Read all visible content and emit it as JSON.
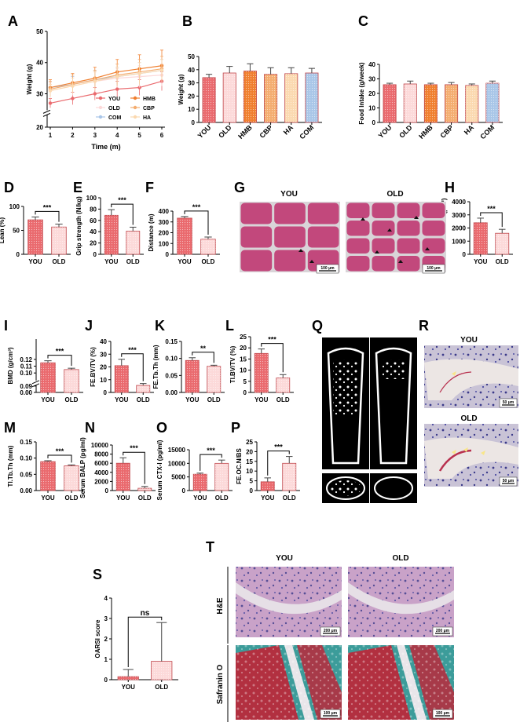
{
  "colors": {
    "YOU": "#ea6a6e",
    "OLD": "#fcd9d9",
    "HMB": "#f07f2f",
    "CBP": "#f4ad70",
    "HA": "#fbd9b0",
    "COM": "#a9c6e8",
    "tissue_pink": "#c2487c",
    "tissue_gap": "#d9d4d8",
    "safranin_red": "#b23040",
    "fast_green": "#3c9c9a"
  },
  "chart_data": [
    {
      "id": "A",
      "panel": "A",
      "type": "line",
      "x": [
        1,
        2,
        3,
        4,
        5,
        6
      ],
      "xlabel": "Time (m)",
      "ylabel": "Weight (g)",
      "yticks": [
        20,
        30,
        40,
        50
      ],
      "ylim": [
        20,
        50
      ],
      "axis_break": [
        20,
        25
      ],
      "legend": "bottom-right",
      "series": [
        {
          "name": "YOU",
          "values": [
            27,
            28.5,
            30,
            31.5,
            32,
            34
          ],
          "err": [
            1.5,
            2,
            2,
            2.5,
            2.5,
            3
          ]
        },
        {
          "name": "OLD",
          "values": [
            31,
            32.5,
            34,
            35,
            35.5,
            36
          ],
          "err": [
            2.5,
            3,
            3,
            3,
            3.5,
            3.5
          ]
        },
        {
          "name": "COM",
          "values": [
            32,
            33,
            34.5,
            35.5,
            36.5,
            37.5
          ],
          "err": [
            2,
            2.5,
            3,
            3,
            3.5,
            3.5
          ]
        },
        {
          "name": "HMB",
          "values": [
            32,
            33.5,
            35,
            37,
            38,
            39
          ],
          "err": [
            2.5,
            3,
            3.5,
            4,
            4.5,
            5
          ]
        },
        {
          "name": "CBP",
          "values": [
            31.5,
            33,
            34.5,
            36,
            37,
            38
          ],
          "err": [
            2.5,
            3,
            3,
            3.5,
            4,
            4
          ]
        },
        {
          "name": "HA",
          "values": [
            31,
            32.5,
            34,
            35.5,
            36.5,
            37.5
          ],
          "err": [
            2,
            2.5,
            3,
            3,
            3.5,
            3.5
          ]
        }
      ]
    },
    {
      "id": "B",
      "panel": "B",
      "type": "bar",
      "categories": [
        "YOU",
        "OLD",
        "HMB",
        "CBP",
        "HA",
        "COM"
      ],
      "values": [
        34,
        37.5,
        39,
        36.5,
        37,
        37.5
      ],
      "err": [
        2.5,
        5,
        5.5,
        5,
        4.5,
        3.5
      ],
      "colors": [
        "YOU",
        "OLD",
        "HMB",
        "CBP",
        "HA",
        "COM"
      ],
      "ylabel": "Weight (g)",
      "ylim": [
        0,
        50
      ],
      "yticks": [
        0,
        10,
        20,
        30,
        40,
        50
      ]
    },
    {
      "id": "C",
      "panel": "C",
      "type": "bar",
      "categories": [
        "YOU",
        "OLD",
        "HMB",
        "CBP",
        "HA",
        "COM"
      ],
      "values": [
        26,
        26.5,
        26,
        26,
        25.5,
        27
      ],
      "err": [
        1,
        2,
        1,
        1.5,
        1,
        1.5
      ],
      "colors": [
        "YOU",
        "OLD",
        "HMB",
        "CBP",
        "HA",
        "COM"
      ],
      "ylabel": "Food Intake (g/week)",
      "ylim": [
        0,
        40
      ],
      "yticks": [
        0,
        10,
        20,
        30,
        40
      ]
    },
    {
      "id": "D",
      "panel": "D",
      "type": "bar",
      "categories": [
        "YOU",
        "OLD"
      ],
      "values": [
        72,
        57
      ],
      "err": [
        6,
        6
      ],
      "ylabel": "Lean (%)",
      "ylim": [
        0,
        100
      ],
      "yticks": [
        0,
        50,
        100
      ],
      "sig": "***"
    },
    {
      "id": "E",
      "panel": "E",
      "type": "bar",
      "categories": [
        "YOU",
        "OLD"
      ],
      "values": [
        69,
        41
      ],
      "err": [
        10,
        7
      ],
      "ylabel": "Grip strength (N/kg)",
      "ylim": [
        0,
        100
      ],
      "yticks": [
        0,
        20,
        40,
        60,
        80,
        100
      ],
      "sig": "***"
    },
    {
      "id": "F",
      "panel": "F",
      "type": "bar",
      "categories": [
        "YOU",
        "OLD"
      ],
      "values": [
        335,
        140
      ],
      "err": [
        15,
        20
      ],
      "ylabel": "Distance (m)",
      "ylim": [
        0,
        400
      ],
      "yticks": [
        0,
        100,
        200,
        300,
        400
      ],
      "sig": "***"
    },
    {
      "id": "H",
      "panel": "H",
      "type": "bar",
      "categories": [
        "YOU",
        "OLD"
      ],
      "values": [
        2400,
        1600
      ],
      "err": [
        350,
        300
      ],
      "ylabel": "Cross Section (μm²)",
      "ylim": [
        0,
        4000
      ],
      "yticks": [
        0,
        1000,
        2000,
        3000,
        4000
      ],
      "sig": "***"
    },
    {
      "id": "I",
      "panel": "I",
      "type": "bar",
      "categories": [
        "YOU",
        "OLD"
      ],
      "values": [
        0.115,
        0.105
      ],
      "err": [
        0.003,
        0.002
      ],
      "ylabel": "BMD (g/cm³)",
      "ylim": [
        0,
        0.15
      ],
      "yticks": [
        0.0,
        0.09,
        0.1,
        0.11,
        0.12
      ],
      "axis_break": [
        0.0,
        0.09
      ],
      "sig": "***"
    },
    {
      "id": "J",
      "panel": "J",
      "type": "bar",
      "categories": [
        "YOU",
        "OLD"
      ],
      "values": [
        21,
        5.5
      ],
      "err": [
        5,
        1.5
      ],
      "ylabel": "FE.BV/TV (%)",
      "ylim": [
        0,
        40
      ],
      "yticks": [
        0,
        10,
        20,
        30,
        40
      ],
      "sig": "***"
    },
    {
      "id": "K",
      "panel": "K",
      "type": "bar",
      "categories": [
        "YOU",
        "OLD"
      ],
      "values": [
        0.094,
        0.077
      ],
      "err": [
        0.008,
        0.003
      ],
      "ylabel": "FE.Tb.Th (mm)",
      "ylim": [
        0,
        0.15
      ],
      "yticks": [
        0.0,
        0.05,
        0.1,
        0.15
      ],
      "sig": "**"
    },
    {
      "id": "L",
      "panel": "L",
      "type": "bar",
      "categories": [
        "YOU",
        "OLD"
      ],
      "values": [
        17.5,
        6.5
      ],
      "err": [
        2,
        1.5
      ],
      "ylabel": "Tl.BV/TV (%)",
      "ylim": [
        0,
        25
      ],
      "yticks": [
        0,
        5,
        10,
        15,
        20,
        25
      ],
      "sig": "***"
    },
    {
      "id": "M",
      "panel": "M",
      "type": "bar",
      "categories": [
        "YOU",
        "OLD"
      ],
      "values": [
        0.089,
        0.076
      ],
      "err": [
        0.003,
        0.003
      ],
      "ylabel": "Tl.Tb.Th (mm)",
      "ylim": [
        0,
        0.15
      ],
      "yticks": [
        0.0,
        0.05,
        0.1,
        0.15
      ],
      "sig": "***"
    },
    {
      "id": "N",
      "panel": "N",
      "type": "bar",
      "categories": [
        "YOU",
        "OLD"
      ],
      "values": [
        6000,
        500
      ],
      "err": [
        1200,
        400
      ],
      "ylabel": "Serum BALP (pg/ml)",
      "ylim": [
        0,
        10000
      ],
      "yticks": [
        0,
        2000,
        4000,
        6000,
        8000,
        10000
      ],
      "sig": "***"
    },
    {
      "id": "O",
      "panel": "O",
      "type": "bar",
      "categories": [
        "YOU",
        "OLD"
      ],
      "values": [
        6000,
        10000
      ],
      "err": [
        400,
        1200
      ],
      "ylabel": "Serum CTX-I (pg/ml)",
      "ylim": [
        0,
        15000
      ],
      "yticks": [
        0,
        5000,
        10000,
        15000
      ],
      "sig": "***"
    },
    {
      "id": "P",
      "panel": "P",
      "type": "bar",
      "categories": [
        "YOU",
        "OLD"
      ],
      "values": [
        4.5,
        14
      ],
      "err": [
        2,
        3.5
      ],
      "ylabel": "FE.OC.N/BS",
      "ylim": [
        0,
        25
      ],
      "yticks": [
        0,
        5,
        10,
        15,
        20,
        25
      ],
      "sig": "***"
    },
    {
      "id": "S",
      "panel": "S",
      "type": "bar",
      "categories": [
        "YOU",
        "OLD"
      ],
      "values": [
        0.15,
        0.9
      ],
      "err": [
        0.35,
        1.9
      ],
      "ylabel": "OARSI score",
      "ylim": [
        0,
        4
      ],
      "yticks": [
        0,
        1,
        2,
        3,
        4
      ],
      "sig": "ns"
    }
  ],
  "image_panels": {
    "G": {
      "titles": [
        "YOU",
        "OLD"
      ],
      "scalebars": [
        "100 μm",
        "100 μm"
      ]
    },
    "Q": {
      "titles": [
        "YOU",
        "OLD"
      ]
    },
    "R": {
      "titles": [
        "YOU",
        "OLD"
      ],
      "scalebars": [
        "50 μm",
        "50 μm"
      ]
    },
    "T": {
      "titles": [
        "YOU",
        "OLD"
      ],
      "rows": [
        "H&E",
        "Safranin O"
      ],
      "scalebars": [
        "200 μm",
        "200 μm",
        "100 μm",
        "100 μm"
      ]
    }
  }
}
